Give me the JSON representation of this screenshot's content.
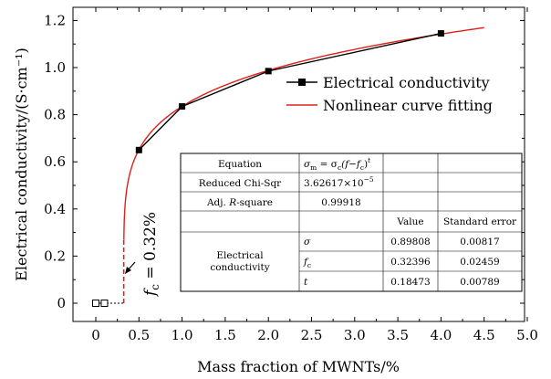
{
  "chart_data": {
    "type": "line",
    "xlabel": "Mass fraction of MWNTs/%",
    "ylabel": "Electrical conductivity/(S·cm⁻¹)",
    "xlim": [
      -0.25,
      5.0
    ],
    "ylim": [
      -0.08,
      1.25
    ],
    "x_ticks": [
      "0",
      "0.5",
      "1.0",
      "1.5",
      "2.0",
      "2.5",
      "3.0",
      "3.5",
      "4.0",
      "4.5",
      "5.0"
    ],
    "y_ticks": [
      "0",
      "0.2",
      "0.4",
      "0.6",
      "0.8",
      "1.0",
      "1.2"
    ],
    "legend_position": "top-right",
    "series": [
      {
        "name": "Electrical conductivity",
        "color": "#000000",
        "marker": "filled-square",
        "x": [
          0.5,
          1.0,
          2.0,
          4.0
        ],
        "y": [
          0.65,
          0.835,
          0.985,
          1.145
        ]
      },
      {
        "name": "Nonlinear curve fitting",
        "color": "#e0201b",
        "function": "sigma*(x-fc)^t",
        "x_range": [
          0.32396,
          4.5
        ]
      }
    ],
    "below_threshold_points": {
      "marker": "open-square",
      "x": [
        0,
        0.1
      ],
      "y": [
        0,
        0
      ]
    },
    "annotation": {
      "label": "f",
      "subscript": "c",
      "value_text": " = 0.32%",
      "x": 0.32
    },
    "fit_table": {
      "equation_label": "Equation",
      "equation_main": "σ",
      "equation_main_sub": "m",
      "equation_rest": " = σ",
      "equation_rest_sub": "c",
      "equation_tail": "(f−f",
      "equation_tail_sub": "c",
      "equation_close": ")",
      "equation_exp": "t",
      "chisq_label": "Reduced Chi-Sqr",
      "chisq_value": "3.62617×10",
      "chisq_exp": "−5",
      "adjr_label_pre": "Adj. ",
      "adjr_label_r": "R",
      "adjr_label_post": "-square",
      "adjr_value": "0.99918",
      "col_value": "Value",
      "col_error": "Standard error",
      "group_label_line1": "Electrical",
      "group_label_line2": "conductivity",
      "params": [
        {
          "name": "σ",
          "sub": "",
          "value": "0.89808",
          "error": "0.00817",
          "value_num": 0.89808
        },
        {
          "name": "f",
          "sub": "c",
          "value": "0.32396",
          "error": "0.02459",
          "value_num": 0.32396
        },
        {
          "name": "t",
          "sub": "",
          "value": "0.18473",
          "error": "0.00789",
          "value_num": 0.18473
        }
      ]
    }
  }
}
